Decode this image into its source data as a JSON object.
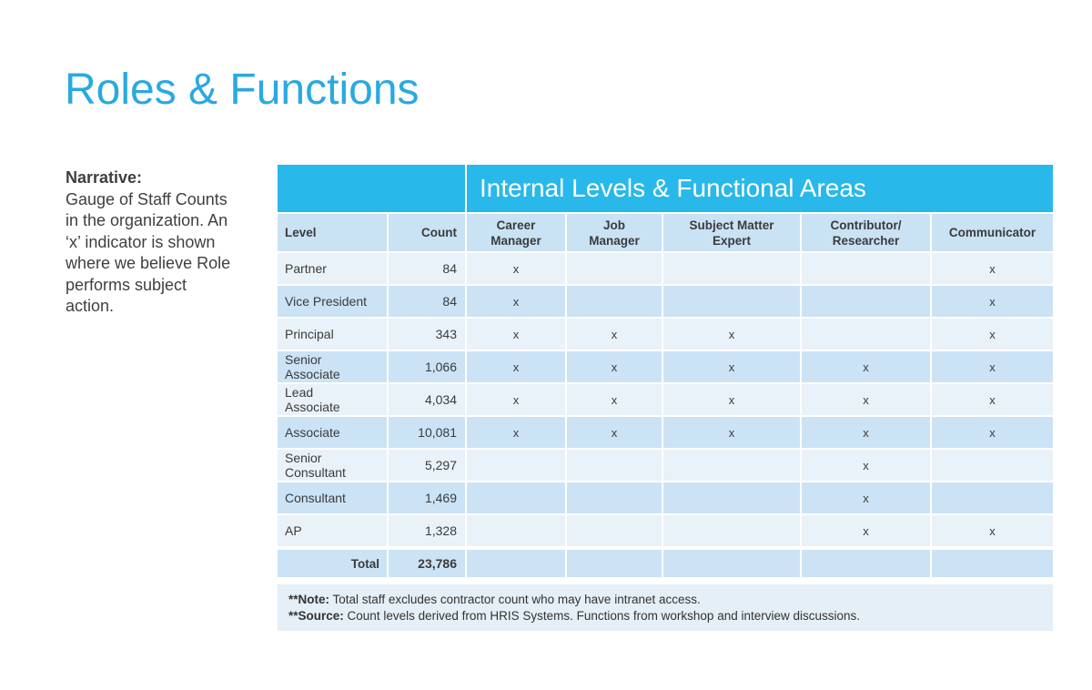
{
  "slide": {
    "title": "Roles & Functions",
    "narrative": {
      "heading": "Narrative:",
      "body": "Gauge of Staff Counts\nin the organization. An\n‘x’ indicator is shown\nwhere we believe Role\nperforms subject\naction."
    },
    "table": {
      "banner_title": "Internal Levels & Functional Areas",
      "columns": [
        "Level",
        "Count",
        "Career\nManager",
        "Job\nManager",
        "Subject Matter\nExpert",
        "Contributor/\nResearcher",
        "Communicator"
      ],
      "rows": [
        {
          "level": "Partner",
          "count": "84",
          "m0": "x",
          "m1": "",
          "m2": "",
          "m3": "",
          "m4": "x"
        },
        {
          "level": "Vice President",
          "count": "84",
          "m0": "x",
          "m1": "",
          "m2": "",
          "m3": "",
          "m4": "x"
        },
        {
          "level": "Principal",
          "count": "343",
          "m0": "x",
          "m1": "x",
          "m2": "x",
          "m3": "",
          "m4": "x"
        },
        {
          "level": "Senior\nAssociate",
          "count": "1,066",
          "m0": "x",
          "m1": "x",
          "m2": "x",
          "m3": "x",
          "m4": "x"
        },
        {
          "level": "Lead\nAssociate",
          "count": "4,034",
          "m0": "x",
          "m1": "x",
          "m2": "x",
          "m3": "x",
          "m4": "x"
        },
        {
          "level": "Associate",
          "count": "10,081",
          "m0": "x",
          "m1": "x",
          "m2": "x",
          "m3": "x",
          "m4": "x"
        },
        {
          "level": "Senior\nConsultant",
          "count": "5,297",
          "m0": "",
          "m1": "",
          "m2": "",
          "m3": "x",
          "m4": ""
        },
        {
          "level": "Consultant",
          "count": "1,469",
          "m0": "",
          "m1": "",
          "m2": "",
          "m3": "x",
          "m4": ""
        },
        {
          "level": "AP",
          "count": "1,328",
          "m0": "",
          "m1": "",
          "m2": "",
          "m3": "x",
          "m4": "x"
        }
      ],
      "total": {
        "label": "Total",
        "count": "23,786"
      }
    },
    "notes": [
      {
        "label": "**Note:",
        "text": "Total staff excludes contractor count who may have intranet access."
      },
      {
        "label": "**Source:",
        "text": "Count levels derived from HRIS Systems. Functions from workshop and interview discussions."
      }
    ],
    "colors": {
      "title_blue": "#29a9e1",
      "banner_cyan": "#29b8ea",
      "header_row_bg": "#c9e2f4",
      "row_light_bg": "#e9f2f9",
      "row_dark_bg": "#cbe3f5",
      "notes_bg": "#e4eff7",
      "text_dark": "#3b3b3b"
    }
  }
}
